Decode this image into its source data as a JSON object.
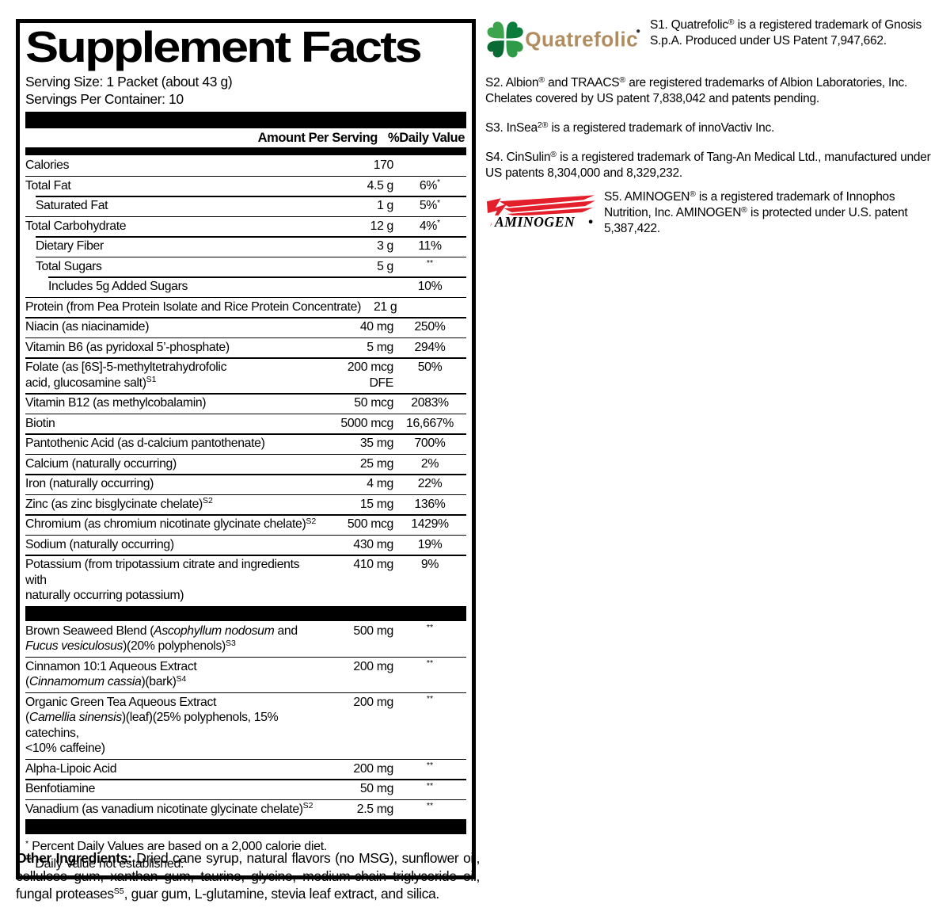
{
  "panel": {
    "title": "Supplement Facts",
    "serving_size": "Serving Size: 1 Packet (about 43 g)",
    "servings_per_container": "Servings Per Container: 10",
    "columns": {
      "amount": "Amount Per Serving",
      "dv": "%Daily Value"
    },
    "rows": [
      {
        "name": [
          {
            "t": "Calories"
          }
        ],
        "amount": "170",
        "dv": "",
        "indent": 0,
        "no_sep": true
      },
      {
        "name": [
          {
            "t": "Total Fat"
          }
        ],
        "amount": "4.5 g",
        "dv": "6%",
        "dv_sup": "*",
        "indent": 0
      },
      {
        "name": [
          {
            "t": "Saturated Fat"
          }
        ],
        "amount": "1 g",
        "dv": "5%",
        "dv_sup": "*",
        "indent": 1
      },
      {
        "name": [
          {
            "t": "Total Carbohydrate"
          }
        ],
        "amount": "12 g",
        "dv": "4%",
        "dv_sup": "*",
        "indent": 0
      },
      {
        "name": [
          {
            "t": "Dietary Fiber"
          }
        ],
        "amount": "3 g",
        "dv": "11%",
        "indent": 1
      },
      {
        "name": [
          {
            "t": "Total Sugars"
          }
        ],
        "amount": "5 g",
        "dv": "",
        "dv_sup": "**",
        "indent": 1
      },
      {
        "name": [
          {
            "t": "Includes 5g Added Sugars"
          }
        ],
        "amount": "",
        "dv": "10%",
        "indent": 2
      },
      {
        "name": [
          {
            "t": "Protein (from Pea Protein Isolate and Rice Protein Concentrate)"
          }
        ],
        "amount": "21 g",
        "dv": "",
        "indent": 0,
        "amount_inline": true
      },
      {
        "name": [
          {
            "t": "Niacin (as niacinamide)"
          }
        ],
        "amount": "40 mg",
        "dv": "250%",
        "indent": 0
      },
      {
        "name": [
          {
            "t": "Vitamin B6 (as pyridoxal 5’-phosphate)"
          }
        ],
        "amount": "5 mg",
        "dv": "294%",
        "indent": 0
      },
      {
        "name": [
          {
            "t": "Folate (as [6S]-5-methyltetrahydrofolic"
          },
          {
            "br": true
          },
          {
            "t": "acid, glucosamine salt)"
          },
          {
            "t": "S1",
            "sup": true
          }
        ],
        "amount": "200 mcg DFE",
        "dv": "50%",
        "indent": 0
      },
      {
        "name": [
          {
            "t": "Vitamin B12 (as methylcobalamin)"
          }
        ],
        "amount": "50 mcg",
        "dv": "2083%",
        "indent": 0
      },
      {
        "name": [
          {
            "t": "Biotin"
          }
        ],
        "amount": "5000 mcg",
        "dv": "16,667%",
        "indent": 0
      },
      {
        "name": [
          {
            "t": "Pantothenic Acid (as d-calcium pantothenate)"
          }
        ],
        "amount": "35 mg",
        "dv": "700%",
        "indent": 0
      },
      {
        "name": [
          {
            "t": "Calcium (naturally occurring)"
          }
        ],
        "amount": "25 mg",
        "dv": "2%",
        "indent": 0
      },
      {
        "name": [
          {
            "t": "Iron (naturally occurring)"
          }
        ],
        "amount": "4 mg",
        "dv": "22%",
        "indent": 0
      },
      {
        "name": [
          {
            "t": "Zinc (as zinc bisglycinate chelate)"
          },
          {
            "t": "S2",
            "sup": true
          }
        ],
        "amount": "15 mg",
        "dv": "136%",
        "indent": 0
      },
      {
        "name": [
          {
            "t": "Chromium (as chromium nicotinate glycinate chelate)"
          },
          {
            "t": "S2",
            "sup": true
          }
        ],
        "amount": "500 mcg",
        "dv": "1429%",
        "indent": 0
      },
      {
        "name": [
          {
            "t": "Sodium (naturally occurring)"
          }
        ],
        "amount": "430 mg",
        "dv": "19%",
        "indent": 0
      },
      {
        "name": [
          {
            "t": "Potassium (from tripotassium citrate and ingredients with"
          },
          {
            "br": true
          },
          {
            "t": "naturally occurring potassium)"
          }
        ],
        "amount": "410 mg",
        "dv": "9%",
        "indent": 0
      },
      {
        "bar": true
      },
      {
        "name": [
          {
            "t": "Brown Seaweed Blend ("
          },
          {
            "t": "Ascophyllum nodosum",
            "i": true
          },
          {
            "t": " and"
          },
          {
            "br": true
          },
          {
            "t": "Fucus vesiculosus",
            "i": true
          },
          {
            "t": ")(20% polyphenols)"
          },
          {
            "t": "S3",
            "sup": true
          }
        ],
        "amount": "500 mg",
        "dv": "",
        "dv_sup": "**",
        "indent": 0,
        "no_sep": true
      },
      {
        "name": [
          {
            "t": "Cinnamon 10:1 Aqueous Extract"
          },
          {
            "br": true
          },
          {
            "t": "("
          },
          {
            "t": "Cinnamomum cassia",
            "i": true
          },
          {
            "t": ")(bark)"
          },
          {
            "t": "S4",
            "sup": true
          }
        ],
        "amount": "200 mg",
        "dv": "",
        "dv_sup": "**",
        "indent": 0
      },
      {
        "name": [
          {
            "t": "Organic Green Tea Aqueous Extract"
          },
          {
            "br": true
          },
          {
            "t": "("
          },
          {
            "t": "Camellia sinensis",
            "i": true
          },
          {
            "t": ")(leaf)(25% polyphenols, 15% catechins,"
          },
          {
            "br": true
          },
          {
            "t": "<10% caffeine)"
          }
        ],
        "amount": "200 mg",
        "dv": "",
        "dv_sup": "**",
        "indent": 0
      },
      {
        "name": [
          {
            "t": "Alpha-Lipoic Acid"
          }
        ],
        "amount": "200 mg",
        "dv": "",
        "dv_sup": "**",
        "indent": 0
      },
      {
        "name": [
          {
            "t": "Benfotiamine"
          }
        ],
        "amount": "50 mg",
        "dv": "",
        "dv_sup": "**",
        "indent": 0
      },
      {
        "name": [
          {
            "t": "Vanadium (as vanadium nicotinate glycinate chelate)"
          },
          {
            "t": "S2",
            "sup": true
          }
        ],
        "amount": "2.5 mg",
        "dv": "",
        "dv_sup": "**",
        "indent": 0
      }
    ],
    "footnotes": [
      {
        "sup": "*",
        "text": "Percent Daily Values are based on a 2,000 calorie diet."
      },
      {
        "sup": "**",
        "text": "Daily Value not established."
      }
    ]
  },
  "other_ingredients": {
    "label": "Other Ingredients:",
    "text": [
      {
        "t": " Dried cane syrup, natural flavors (no MSG), sunflower oil, cellulose gum, xanthan gum, taurine, glycine, medium-chain triglyceride oil, fungal proteases"
      },
      {
        "t": "S5",
        "sup": true
      },
      {
        "t": ", guar gum, L-glutamine, stevia leaf extract, and silica."
      }
    ]
  },
  "trademark_notes": {
    "s1": [
      {
        "t": "S1. Quatrefolic"
      },
      {
        "t": "®",
        "sup": true
      },
      {
        "t": " is a registered trademark of Gnosis S.p.A. Produced under US Patent 7,947,662."
      }
    ],
    "s2": [
      {
        "t": "S2. Albion"
      },
      {
        "t": "®",
        "sup": true
      },
      {
        "t": " and TRAACS"
      },
      {
        "t": "®",
        "sup": true
      },
      {
        "t": " are registered trademarks of Albion Laboratories, Inc. Chelates covered by US patent 7,838,042 and patents pending."
      }
    ],
    "s3": [
      {
        "t": "S3. InSea"
      },
      {
        "t": "2®",
        "sup": true
      },
      {
        "t": " is a registered trademark of innoVactiv Inc."
      }
    ],
    "s4": [
      {
        "t": "S4. CinSulin"
      },
      {
        "t": "®",
        "sup": true
      },
      {
        "t": " is a registered trademark of Tang-An Medical Ltd., manufactured under US patents 8,304,000 and 8,329,232."
      }
    ],
    "s5": [
      {
        "t": "S5. AMINOGEN"
      },
      {
        "t": "®",
        "sup": true
      },
      {
        "t": " is a registered trademark of Innophos Nutrition, Inc. AMINOGEN"
      },
      {
        "t": "®",
        "sup": true
      },
      {
        "t": " is protected under U.S. patent 5,387,422."
      }
    ]
  },
  "logos": {
    "quatrefolic": {
      "wordmark": "Quatrefolic",
      "colors": {
        "leaf_top_left": "#3ca44c",
        "leaf_top_right": "#0c7c3c",
        "leaf_bottom_left": "#0a6a33",
        "leaf_bottom_right": "#2f9b48",
        "wordmark_color": "#b18c5e"
      }
    },
    "aminogen": {
      "wordmark": "AMINOGEN",
      "colors": {
        "flash_red": "#e31f2b",
        "text_black": "#000000"
      }
    }
  }
}
